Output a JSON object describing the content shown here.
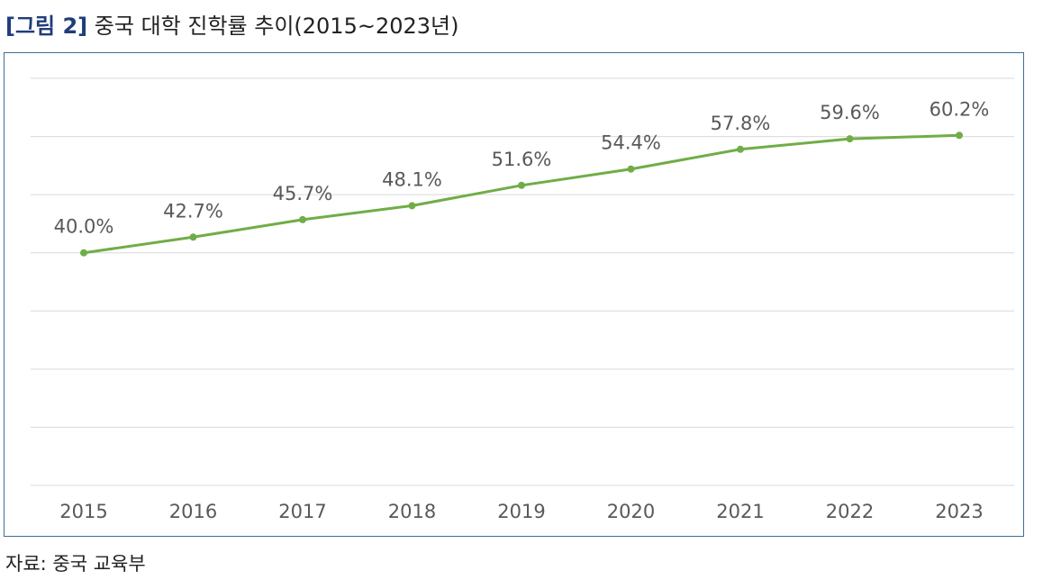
{
  "figure": {
    "label": "[그림 2]",
    "title": "중국 대학 진학률 추이(2015~2023년)",
    "source": "자료: 중국 교육부"
  },
  "colors": {
    "line": "#70ad47",
    "label_text": "#595959",
    "grid": "#d9d9d9",
    "frame": "#3d6f93",
    "caption_label": "#1f3d7a"
  },
  "chart_data": {
    "type": "line",
    "title": "",
    "xlabel": "",
    "ylabel": "",
    "categories": [
      "2015",
      "2016",
      "2017",
      "2018",
      "2019",
      "2020",
      "2021",
      "2022",
      "2023"
    ],
    "series": [
      {
        "values": [
          40.0,
          42.7,
          45.7,
          48.1,
          51.6,
          54.4,
          57.8,
          59.6,
          60.2
        ],
        "data_labels": [
          "40.0%",
          "42.7%",
          "45.7%",
          "48.1%",
          "51.6%",
          "54.4%",
          "57.8%",
          "59.6%",
          "60.2%"
        ]
      }
    ],
    "ylim": [
      0,
      70
    ],
    "y_tick_labels_shown": false,
    "grid": true,
    "legend": "none"
  }
}
